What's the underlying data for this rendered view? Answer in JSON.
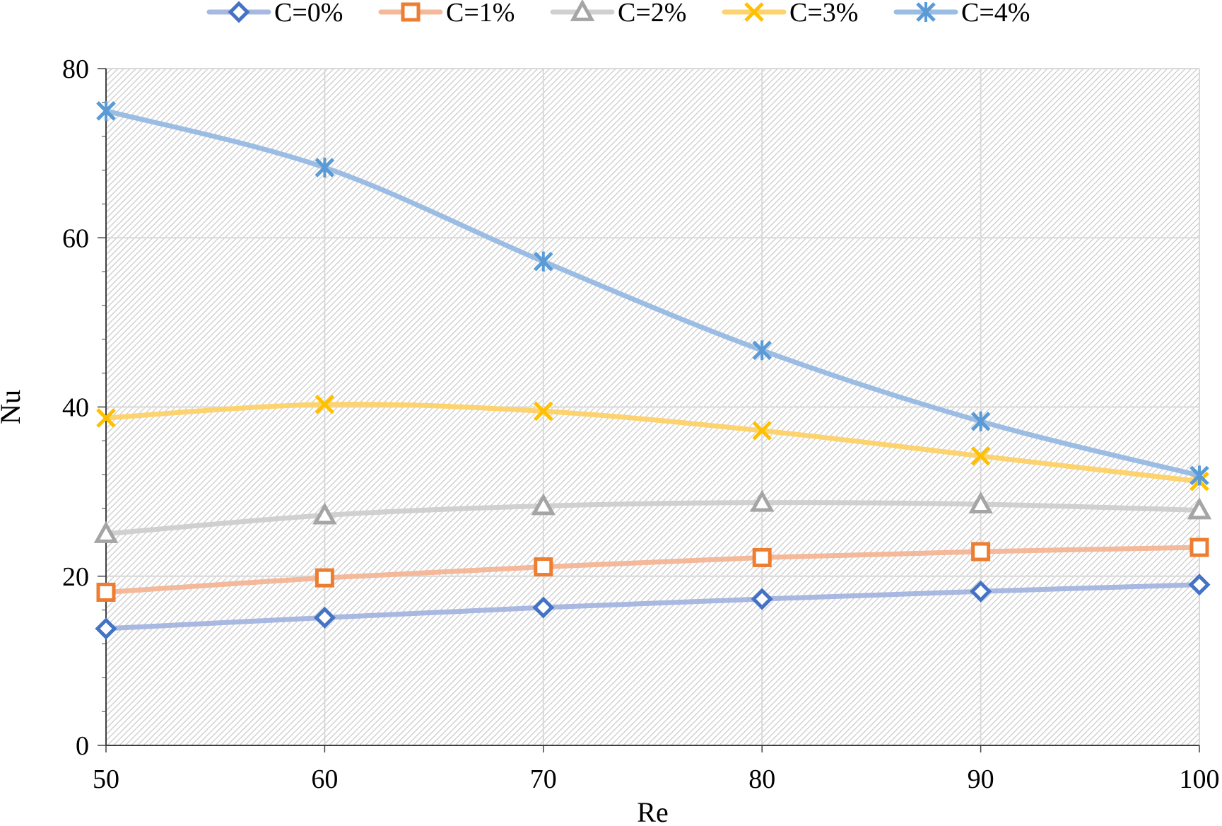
{
  "chart_data": {
    "type": "line",
    "title": "",
    "xlabel": "Re",
    "ylabel": "Nu",
    "x": [
      50,
      60,
      70,
      80,
      90,
      100
    ],
    "xlim": [
      50,
      100
    ],
    "ylim": [
      0,
      80
    ],
    "xticks": [
      "50",
      "60",
      "70",
      "80",
      "90",
      "100"
    ],
    "yticks": [
      "0",
      "20",
      "40",
      "60",
      "80"
    ],
    "grid": true,
    "legend_position": "top",
    "series": [
      {
        "name": "C=0%",
        "values": [
          13.8,
          15.1,
          16.3,
          17.3,
          18.2,
          19.0
        ],
        "line_color": "#a9b8e0",
        "marker_color": "#4472c4",
        "marker": "diamond"
      },
      {
        "name": "C=1%",
        "values": [
          18.1,
          19.8,
          21.1,
          22.2,
          22.9,
          23.4
        ],
        "line_color": "#f4b89a",
        "marker_color": "#ed7d31",
        "marker": "square"
      },
      {
        "name": "C=2%",
        "values": [
          25.0,
          27.2,
          28.3,
          28.7,
          28.5,
          27.8
        ],
        "line_color": "#d0d0d0",
        "marker_color": "#a5a5a5",
        "marker": "triangle"
      },
      {
        "name": "C=3%",
        "values": [
          38.7,
          40.3,
          39.5,
          37.2,
          34.2,
          31.2
        ],
        "line_color": "#fdd36f",
        "marker_color": "#ffc000",
        "marker": "x"
      },
      {
        "name": "C=4%",
        "values": [
          75.0,
          68.3,
          57.2,
          46.7,
          38.3,
          31.9
        ],
        "line_color": "#9cbde3",
        "marker_color": "#5b9bd5",
        "marker": "star"
      }
    ]
  }
}
